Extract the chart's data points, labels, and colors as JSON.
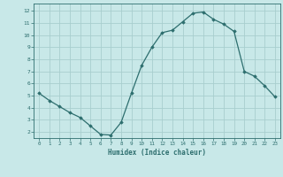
{
  "x": [
    0,
    1,
    2,
    3,
    4,
    5,
    6,
    7,
    8,
    9,
    10,
    11,
    12,
    13,
    14,
    15,
    16,
    17,
    18,
    19,
    20,
    21,
    22,
    23
  ],
  "y": [
    5.2,
    4.6,
    4.1,
    3.6,
    3.2,
    2.5,
    1.8,
    1.75,
    2.8,
    5.2,
    7.5,
    9.0,
    10.2,
    10.4,
    11.1,
    11.8,
    11.9,
    11.3,
    10.9,
    10.3,
    7.0,
    6.6,
    5.8,
    4.9
  ],
  "line_color": "#2d6e6e",
  "marker": "D",
  "marker_size": 1.8,
  "bg_color": "#c8e8e8",
  "grid_color": "#a8cece",
  "tick_color": "#2d6e6e",
  "label_color": "#2d6e6e",
  "xlabel": "Humidex (Indice chaleur)",
  "ylim": [
    1.5,
    12.6
  ],
  "xlim": [
    -0.5,
    23.5
  ],
  "yticks": [
    2,
    3,
    4,
    5,
    6,
    7,
    8,
    9,
    10,
    11,
    12
  ],
  "xticks": [
    0,
    1,
    2,
    3,
    4,
    5,
    6,
    7,
    8,
    9,
    10,
    11,
    12,
    13,
    14,
    15,
    16,
    17,
    18,
    19,
    20,
    21,
    22,
    23
  ]
}
